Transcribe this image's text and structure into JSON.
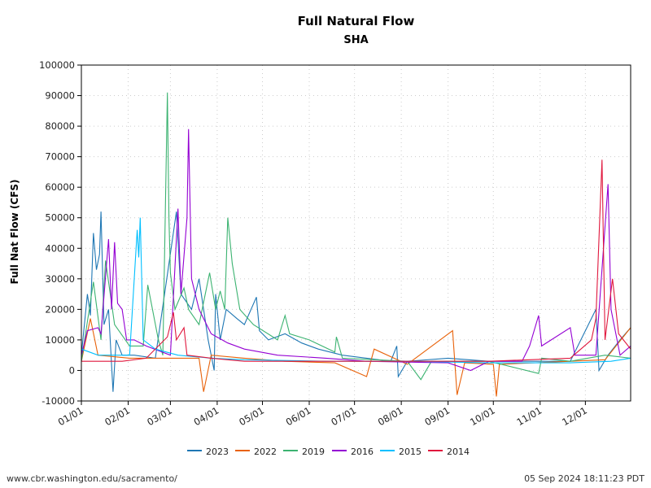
{
  "chart_data": {
    "type": "line",
    "title": "Full Natural Flow",
    "subtitle": "SHA",
    "ylabel": "Full Nat Flow (CFS)",
    "xlabel": "",
    "ylim": [
      -10000,
      100000
    ],
    "yticks": [
      "-10000",
      "0",
      "10000",
      "20000",
      "30000",
      "40000",
      "50000",
      "60000",
      "70000",
      "80000",
      "90000",
      "100000"
    ],
    "xticks": [
      "01/01",
      "02/01",
      "03/01",
      "04/01",
      "05/01",
      "06/01",
      "07/01",
      "08/01",
      "09/01",
      "10/01",
      "11/01",
      "12/01"
    ],
    "grid": true,
    "legend_position": "bottom",
    "series": [
      {
        "name": "2023",
        "color": "#1f77b4",
        "points": [
          [
            "01/01",
            5000
          ],
          [
            "01/05",
            25000
          ],
          [
            "01/07",
            18000
          ],
          [
            "01/09",
            45000
          ],
          [
            "01/11",
            33000
          ],
          [
            "01/13",
            38000
          ],
          [
            "01/14",
            52000
          ],
          [
            "01/16",
            15000
          ],
          [
            "01/19",
            20000
          ],
          [
            "01/22",
            -7000
          ],
          [
            "01/24",
            10000
          ],
          [
            "01/28",
            5000
          ],
          [
            "02/05",
            5000
          ],
          [
            "02/19",
            4000
          ],
          [
            "03/05",
            52000
          ],
          [
            "03/08",
            25000
          ],
          [
            "03/15",
            20000
          ],
          [
            "03/20",
            30000
          ],
          [
            "03/26",
            10000
          ],
          [
            "03/30",
            0
          ],
          [
            "03/31",
            25000
          ],
          [
            "04/03",
            10000
          ],
          [
            "04/07",
            20000
          ],
          [
            "04/14",
            17000
          ],
          [
            "04/19",
            15000
          ],
          [
            "04/27",
            24000
          ],
          [
            "04/29",
            13000
          ],
          [
            "05/05",
            10000
          ],
          [
            "05/16",
            12000
          ],
          [
            "05/27",
            9000
          ],
          [
            "06/07",
            7000
          ],
          [
            "06/23",
            5000
          ],
          [
            "07/25",
            3000
          ],
          [
            "07/29",
            8000
          ],
          [
            "07/30",
            -2000
          ],
          [
            "08/05",
            3000
          ],
          [
            "09/01",
            4000
          ],
          [
            "09/28",
            3000
          ],
          [
            "10/25",
            3000
          ],
          [
            "11/21",
            3000
          ],
          [
            "12/08",
            20000
          ],
          [
            "12/10",
            0
          ],
          [
            "12/16",
            5000
          ],
          [
            "12/24",
            10000
          ],
          [
            "12/31",
            14000
          ]
        ]
      },
      {
        "name": "2022",
        "color": "#e8620a",
        "points": [
          [
            "01/01",
            3000
          ],
          [
            "01/07",
            17000
          ],
          [
            "01/12",
            5000
          ],
          [
            "02/02",
            4000
          ],
          [
            "02/24",
            4000
          ],
          [
            "03/20",
            4000
          ],
          [
            "03/23",
            -7000
          ],
          [
            "03/28",
            5000
          ],
          [
            "04/19",
            4000
          ],
          [
            "05/16",
            3000
          ],
          [
            "06/18",
            2500
          ],
          [
            "07/09",
            -2000
          ],
          [
            "07/14",
            7000
          ],
          [
            "08/05",
            2000
          ],
          [
            "09/04",
            13000
          ],
          [
            "09/07",
            -8000
          ],
          [
            "09/12",
            2500
          ],
          [
            "10/01",
            2000
          ],
          [
            "10/03",
            -8500
          ],
          [
            "10/05",
            2000
          ],
          [
            "11/21",
            3000
          ],
          [
            "12/14",
            3500
          ],
          [
            "12/31",
            14000
          ]
        ]
      },
      {
        "name": "2019",
        "color": "#3cb371",
        "points": [
          [
            "01/01",
            3000
          ],
          [
            "01/09",
            29000
          ],
          [
            "01/14",
            10000
          ],
          [
            "01/17",
            36000
          ],
          [
            "01/23",
            15000
          ],
          [
            "02/02",
            8000
          ],
          [
            "02/11",
            8000
          ],
          [
            "02/14",
            28000
          ],
          [
            "02/21",
            10000
          ],
          [
            "02/24",
            5000
          ],
          [
            "02/27",
            91000
          ],
          [
            "02/28",
            50000
          ],
          [
            "03/01",
            32000
          ],
          [
            "03/04",
            20000
          ],
          [
            "03/10",
            27000
          ],
          [
            "03/13",
            20000
          ],
          [
            "03/20",
            15000
          ],
          [
            "03/27",
            32000
          ],
          [
            "03/31",
            20000
          ],
          [
            "04/03",
            26000
          ],
          [
            "04/06",
            20000
          ],
          [
            "04/08",
            50000
          ],
          [
            "04/11",
            35000
          ],
          [
            "04/16",
            20000
          ],
          [
            "04/25",
            15000
          ],
          [
            "05/11",
            10000
          ],
          [
            "05/16",
            18000
          ],
          [
            "05/19",
            12000
          ],
          [
            "06/01",
            10000
          ],
          [
            "06/18",
            6000
          ],
          [
            "06/19",
            11000
          ],
          [
            "06/23",
            4000
          ],
          [
            "08/05",
            3000
          ],
          [
            "08/14",
            -3000
          ],
          [
            "08/21",
            3000
          ],
          [
            "09/28",
            3000
          ],
          [
            "10/31",
            -1000
          ],
          [
            "11/02",
            4000
          ],
          [
            "11/21",
            3000
          ],
          [
            "12/14",
            5000
          ],
          [
            "12/31",
            4000
          ]
        ]
      },
      {
        "name": "2016",
        "color": "#9400d3",
        "points": [
          [
            "01/01",
            5000
          ],
          [
            "01/05",
            13000
          ],
          [
            "01/12",
            14000
          ],
          [
            "01/14",
            12000
          ],
          [
            "01/19",
            43000
          ],
          [
            "01/21",
            20000
          ],
          [
            "01/23",
            42000
          ],
          [
            "01/25",
            22000
          ],
          [
            "01/28",
            20000
          ],
          [
            "01/31",
            10000
          ],
          [
            "02/05",
            10000
          ],
          [
            "02/13",
            8000
          ],
          [
            "03/01",
            5000
          ],
          [
            "03/06",
            53000
          ],
          [
            "03/08",
            25000
          ],
          [
            "03/12",
            50000
          ],
          [
            "03/13",
            79000
          ],
          [
            "03/15",
            30000
          ],
          [
            "03/20",
            20000
          ],
          [
            "03/28",
            12000
          ],
          [
            "04/08",
            9000
          ],
          [
            "04/19",
            7000
          ],
          [
            "05/11",
            5000
          ],
          [
            "06/12",
            4000
          ],
          [
            "07/09",
            3000
          ],
          [
            "09/01",
            2500
          ],
          [
            "09/16",
            0
          ],
          [
            "09/28",
            3000
          ],
          [
            "10/20",
            3000
          ],
          [
            "10/25",
            8000
          ],
          [
            "10/31",
            18000
          ],
          [
            "11/02",
            8000
          ],
          [
            "11/21",
            14000
          ],
          [
            "11/24",
            5000
          ],
          [
            "12/08",
            5000
          ],
          [
            "12/16",
            61000
          ],
          [
            "12/18",
            20000
          ],
          [
            "12/24",
            5000
          ],
          [
            "12/31",
            8000
          ]
        ]
      },
      {
        "name": "2015",
        "color": "#00bfff",
        "points": [
          [
            "01/01",
            7000
          ],
          [
            "01/12",
            5000
          ],
          [
            "02/02",
            5000
          ],
          [
            "02/07",
            46000
          ],
          [
            "02/08",
            37000
          ],
          [
            "02/09",
            50000
          ],
          [
            "02/11",
            10000
          ],
          [
            "02/19",
            7000
          ],
          [
            "03/06",
            5000
          ],
          [
            "03/28",
            4000
          ],
          [
            "04/19",
            3500
          ],
          [
            "06/12",
            3000
          ],
          [
            "08/05",
            3000
          ],
          [
            "09/28",
            2500
          ],
          [
            "11/21",
            2500
          ],
          [
            "12/18",
            3000
          ],
          [
            "12/31",
            4000
          ]
        ]
      },
      {
        "name": "2014",
        "color": "#e0173d",
        "points": [
          [
            "01/01",
            3000
          ],
          [
            "01/28",
            3000
          ],
          [
            "02/13",
            4000
          ],
          [
            "02/27",
            11000
          ],
          [
            "03/03",
            19000
          ],
          [
            "03/05",
            10000
          ],
          [
            "03/10",
            14000
          ],
          [
            "03/12",
            5000
          ],
          [
            "03/28",
            4000
          ],
          [
            "04/19",
            3000
          ],
          [
            "06/12",
            3000
          ],
          [
            "09/28",
            3000
          ],
          [
            "11/21",
            4000
          ],
          [
            "12/05",
            10000
          ],
          [
            "12/08",
            17000
          ],
          [
            "12/12",
            69000
          ],
          [
            "12/14",
            10000
          ],
          [
            "12/19",
            30000
          ],
          [
            "12/23",
            12000
          ],
          [
            "12/31",
            7000
          ]
        ]
      }
    ]
  },
  "footer": {
    "url": "www.cbr.washington.edu/sacramento/",
    "timestamp": "05 Sep 2024 18:11:23 PDT"
  }
}
